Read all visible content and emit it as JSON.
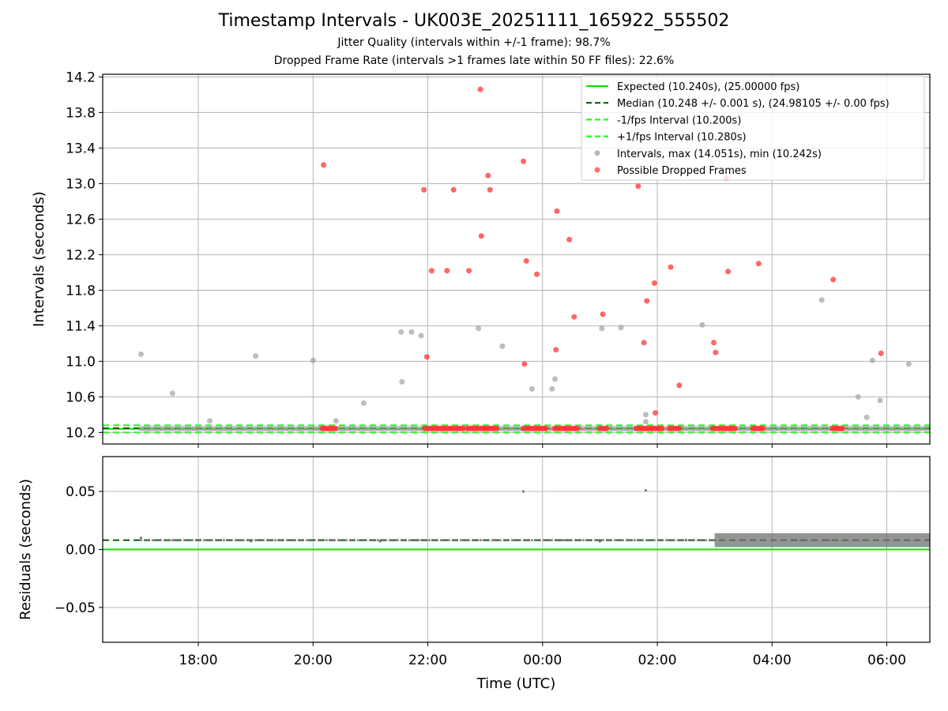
{
  "title": "Timestamp Intervals - UK003E_20251111_165922_555502",
  "subtitle_1": "Jitter Quality (intervals within +/-1 frame): 98.7%",
  "subtitle_2": "Dropped Frame Rate (intervals >1 frames late within 50 FF files): 22.6%",
  "colors": {
    "expected": "#00e600",
    "median": "#006400",
    "fps_interval": "#1aff1a",
    "intervals": "#999999",
    "dropped": "#ff3333",
    "residuals": "#707070",
    "grid": "#b0b0b0"
  },
  "chart_data": [
    {
      "type": "scatter",
      "panel": "top",
      "ylabel": "Intervals (seconds)",
      "xlabel": "",
      "xlim": [
        "2025-11-11 16:20",
        "2025-11-12 06:45"
      ],
      "ylim": [
        10.07,
        14.23
      ],
      "yticks": [
        10.2,
        10.6,
        11.0,
        11.4,
        11.8,
        12.2,
        12.6,
        13.0,
        13.4,
        13.8,
        14.2
      ],
      "ytick_labels": [
        "10.2",
        "10.6",
        "11.0",
        "11.4",
        "11.8",
        "12.2",
        "12.6",
        "13.0",
        "13.4",
        "13.8",
        "14.2"
      ],
      "xticks": [
        "2025-11-11 18:00",
        "2025-11-11 20:00",
        "2025-11-11 22:00",
        "2025-11-12 00:00",
        "2025-11-12 02:00",
        "2025-11-12 04:00",
        "2025-11-12 06:00"
      ],
      "grid": true,
      "legend_position": "top-right",
      "reference_lines": [
        {
          "name": "Expected (10.240s), (25.00000 fps)",
          "y": 10.24,
          "style": "solid",
          "color_key": "expected"
        },
        {
          "name": "Median (10.248 +/- 0.001 s), (24.98105 +/- 0.00 fps)",
          "y": 10.248,
          "style": "dashed",
          "color_key": "median"
        },
        {
          "name": "-1/fps Interval (10.200s)",
          "y": 10.2,
          "style": "dashed",
          "color_key": "fps_interval"
        },
        {
          "name": "+1/fps Interval (10.280s)",
          "y": 10.28,
          "style": "dashed",
          "color_key": "fps_interval"
        }
      ],
      "series": [
        {
          "name": "Intervals, max (14.051s), min (10.242s)",
          "color_key": "intervals",
          "x": [
            "2025-11-11 17:00",
            "2025-11-11 17:33",
            "2025-11-11 18:12",
            "2025-11-11 19:00",
            "2025-11-11 20:00",
            "2025-11-11 20:24",
            "2025-11-11 20:53",
            "2025-11-11 21:33",
            "2025-11-11 21:32",
            "2025-11-11 21:43",
            "2025-11-11 21:53",
            "2025-11-11 22:53",
            "2025-11-11 23:18",
            "2025-11-11 23:49",
            "2025-11-12 00:10",
            "2025-11-12 00:13",
            "2025-11-12 01:02",
            "2025-11-12 01:22",
            "2025-11-12 01:48",
            "2025-11-12 01:48",
            "2025-11-12 02:47",
            "2025-11-12 04:52",
            "2025-11-12 05:30",
            "2025-11-12 05:39",
            "2025-11-12 05:45",
            "2025-11-12 05:53",
            "2025-11-12 06:23"
          ],
          "y": [
            11.08,
            10.64,
            10.33,
            11.06,
            11.01,
            10.33,
            10.53,
            10.77,
            11.33,
            11.33,
            11.29,
            11.37,
            11.17,
            10.69,
            10.69,
            10.8,
            11.37,
            11.38,
            10.4,
            10.32,
            11.41,
            11.69,
            10.6,
            10.37,
            11.01,
            10.56,
            10.97
          ]
        },
        {
          "name": "Possible Dropped Frames",
          "color_key": "dropped",
          "x": [
            "2025-11-11 20:11",
            "2025-11-11 21:56",
            "2025-11-11 21:59",
            "2025-11-11 22:04",
            "2025-11-11 22:20",
            "2025-11-11 22:27",
            "2025-11-11 22:43",
            "2025-11-11 22:55",
            "2025-11-11 22:56",
            "2025-11-11 23:03",
            "2025-11-11 23:05",
            "2025-11-11 23:40",
            "2025-11-11 23:43",
            "2025-11-11 23:41",
            "2025-11-11 23:54",
            "2025-11-12 00:14",
            "2025-11-12 00:15",
            "2025-11-12 00:28",
            "2025-11-12 00:33",
            "2025-11-12 01:03",
            "2025-11-12 01:40",
            "2025-11-12 01:46",
            "2025-11-12 01:49",
            "2025-11-12 01:57",
            "2025-11-12 01:58",
            "2025-11-12 02:14",
            "2025-11-12 02:23",
            "2025-11-12 02:59",
            "2025-11-12 03:01",
            "2025-11-12 03:12",
            "2025-11-12 03:14",
            "2025-11-12 03:46",
            "2025-11-12 05:04",
            "2025-11-12 05:54"
          ],
          "y": [
            13.21,
            12.93,
            11.05,
            12.02,
            12.02,
            12.93,
            12.02,
            14.06,
            12.41,
            13.09,
            12.93,
            13.25,
            12.13,
            10.97,
            11.98,
            11.13,
            12.69,
            12.37,
            11.5,
            11.53,
            12.97,
            11.21,
            11.68,
            11.88,
            10.42,
            12.06,
            10.73,
            11.21,
            11.1,
            13.06,
            12.01,
            12.1,
            11.92,
            11.09
          ]
        }
      ],
      "legend": [
        {
          "label": "Expected (10.240s), (25.00000 fps)",
          "kind": "solid",
          "color_key": "expected"
        },
        {
          "label": "Median (10.248 +/- 0.001 s), (24.98105 +/- 0.00 fps)",
          "kind": "dashed",
          "color_key": "median"
        },
        {
          "label": "-1/fps Interval (10.200s)",
          "kind": "dashed",
          "color_key": "fps_interval"
        },
        {
          "label": "+1/fps Interval (10.280s)",
          "kind": "dashed",
          "color_key": "fps_interval"
        },
        {
          "label": "Intervals, max (14.051s), min (10.242s)",
          "kind": "dot",
          "color_key": "intervals"
        },
        {
          "label": "Possible Dropped Frames",
          "kind": "dot",
          "color_key": "dropped"
        }
      ],
      "baseline_bands": [
        {
          "name": "Intervals",
          "y": 10.242,
          "from": "2025-11-11 17:00",
          "to": "2025-11-12 06:45",
          "color_key": "intervals"
        },
        {
          "name": "Possible Dropped Frames",
          "y": 10.245,
          "color_key": "dropped",
          "ranges": [
            [
              "2025-11-11 20:10",
              "2025-11-11 20:24"
            ],
            [
              "2025-11-11 21:57",
              "2025-11-11 22:38"
            ],
            [
              "2025-11-11 22:42",
              "2025-11-11 23:15"
            ],
            [
              "2025-11-11 23:40",
              "2025-11-12 00:05"
            ],
            [
              "2025-11-12 00:13",
              "2025-11-12 00:38"
            ],
            [
              "2025-11-12 01:00",
              "2025-11-12 01:08"
            ],
            [
              "2025-11-12 01:38",
              "2025-11-12 02:06"
            ],
            [
              "2025-11-12 02:13",
              "2025-11-12 02:24"
            ],
            [
              "2025-11-12 02:58",
              "2025-11-12 03:22"
            ],
            [
              "2025-11-12 03:40",
              "2025-11-12 03:52"
            ],
            [
              "2025-11-12 05:03",
              "2025-11-12 05:14"
            ]
          ]
        }
      ]
    },
    {
      "type": "scatter",
      "panel": "bottom",
      "ylabel": "Residuals (seconds)",
      "xlabel": "Time (UTC)",
      "xlim": [
        "2025-11-11 16:20",
        "2025-11-12 06:45"
      ],
      "ylim": [
        -0.08,
        0.08
      ],
      "yticks": [
        -0.05,
        0.0,
        0.05
      ],
      "ytick_labels": [
        "−0.05",
        "0.00",
        "0.05"
      ],
      "xticks": [
        "2025-11-11 18:00",
        "2025-11-11 20:00",
        "2025-11-11 22:00",
        "2025-11-12 00:00",
        "2025-11-12 02:00",
        "2025-11-12 04:00",
        "2025-11-12 06:00"
      ],
      "xtick_labels": [
        "18:00",
        "20:00",
        "22:00",
        "00:00",
        "02:00",
        "04:00",
        "06:00"
      ],
      "grid": true,
      "reference_lines": [
        {
          "name": "Expected",
          "y": 0.0,
          "style": "solid",
          "color_key": "expected"
        },
        {
          "name": "Median",
          "y": 0.008,
          "style": "dashed",
          "color_key": "median"
        }
      ],
      "series": [
        {
          "name": "Residuals",
          "color_key": "residuals",
          "x": [
            "2025-11-11 17:00",
            "2025-11-11 17:35",
            "2025-11-11 18:10",
            "2025-11-11 18:55",
            "2025-11-11 19:40",
            "2025-11-11 20:20",
            "2025-11-11 21:10",
            "2025-11-11 21:50",
            "2025-11-11 22:30",
            "2025-11-11 23:10",
            "2025-11-11 23:40",
            "2025-11-11 23:45",
            "2025-11-12 00:20",
            "2025-11-12 01:00",
            "2025-11-12 01:30",
            "2025-11-12 01:48",
            "2025-11-12 02:30",
            "2025-11-12 03:00",
            "2025-11-12 03:30",
            "2025-11-12 04:00",
            "2025-11-12 04:30",
            "2025-11-12 05:00",
            "2025-11-12 05:30",
            "2025-11-12 06:00",
            "2025-11-12 06:30"
          ],
          "y": [
            0.01,
            0.008,
            0.008,
            0.007,
            0.008,
            0.008,
            0.007,
            0.008,
            0.008,
            0.008,
            0.05,
            0.008,
            0.008,
            0.007,
            0.008,
            0.051,
            0.008,
            0.008,
            0.008,
            0.008,
            0.008,
            0.008,
            0.008,
            0.008,
            0.008
          ]
        }
      ],
      "dense_band": {
        "from": "2025-11-12 03:00",
        "to": "2025-11-12 06:45",
        "ymin": 0.002,
        "ymax": 0.014,
        "color_key": "residuals"
      }
    }
  ]
}
